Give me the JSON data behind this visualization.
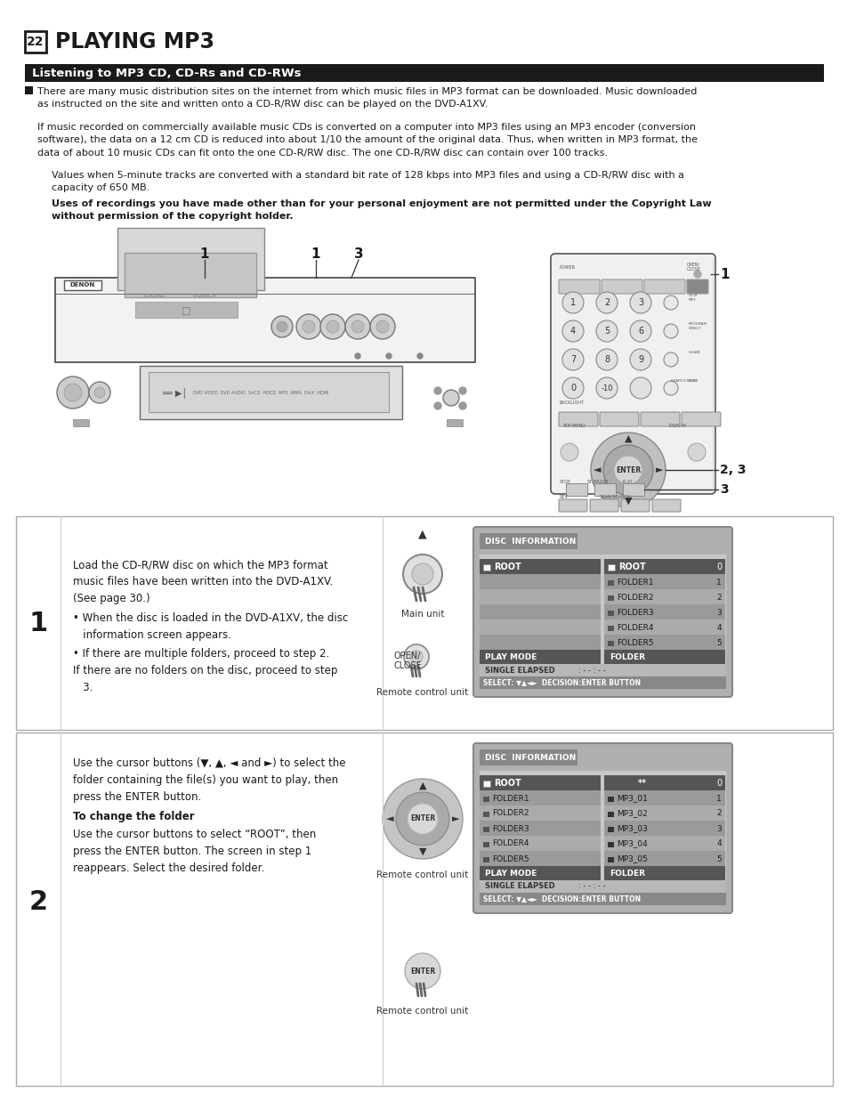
{
  "bg_color": "#ffffff",
  "title_box_text": "22",
  "title_text": "PLAYING MP3",
  "section_bar_text": "Listening to MP3 CD, CD-Rs and CD-RWs",
  "body_text_1": "There are many music distribution sites on the internet from which music files in MP3 format can be downloaded. Music downloaded\nas instructed on the site and written onto a CD-R/RW disc can be played on the DVD-A1XV.",
  "body_text_2": "If music recorded on commercially available music CDs is converted on a computer into MP3 files using an MP3 encoder (conversion\nsoftware), the data on a 12 cm CD is reduced into about 1/10 the amount of the original data. Thus, when written in MP3 format, the\ndata of about 10 music CDs can fit onto the one CD-R/RW disc. The one CD-R/RW disc can contain over 100 tracks.",
  "body_text_3": "Values when 5-minute tracks are converted with a standard bit rate of 128 kbps into MP3 files and using a CD-R/RW disc with a\ncapacity of 650 MB.",
  "body_text_bold": "Uses of recordings you have made other than for your personal enjoyment are not permitted under the Copyright Law\nwithout permission of the copyright holder.",
  "step1_text_a": "Load the CD-R/RW disc on which the MP3 format\nmusic files have been written into the DVD-A1XV.\n(See page 30.)",
  "step1_text_b": "When the disc is loaded in the DVD-A1XV, the disc\n   information screen appears.",
  "step1_text_c": "If there are multiple folders, proceed to step 2.\nIf there are no folders on the disc, proceed to step\n   3.",
  "step2_text_a": "Use the cursor buttons (▼, ▲, ◄ and ►) to select the\nfolder containing the file(s) you want to play, then\npress the ENTER button.",
  "step2_text_b": "To change the folder",
  "step2_text_c": "Use the cursor buttons to select “ROOT”, then\npress the ENTER button. The screen in step 1\nreappears. Select the desired folder.",
  "folders_left": [
    "FOLDER1",
    "FOLDER2",
    "FOLDER3",
    "FOLDER4",
    "FOLDER5"
  ],
  "folders2_left": [
    "FOLDER1",
    "FOLDER2",
    "FOLDER3",
    "FOLDER4",
    "FOLDER5"
  ],
  "folders2_right": [
    "MP3_01",
    "MP3_02",
    "MP3_03",
    "MP3_04",
    "MP3_05"
  ]
}
